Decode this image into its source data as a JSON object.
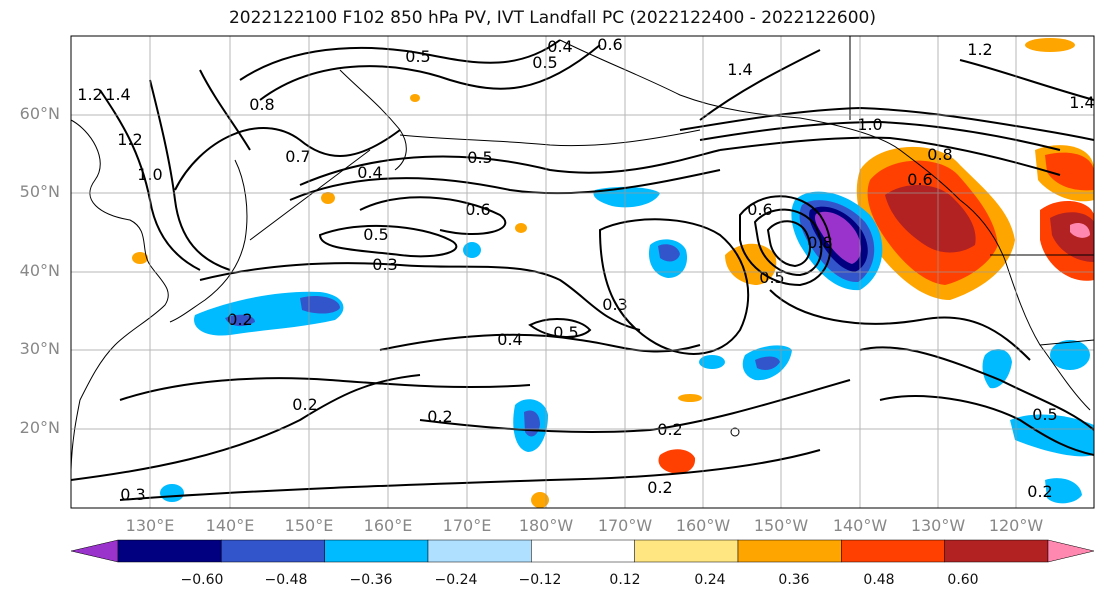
{
  "title": "2022122100 F102 850 hPa PV, IVT Landfall PC (2022122400 - 2022122600)",
  "lat_labels": [
    "60°N",
    "50°N",
    "40°N",
    "30°N",
    "20°N"
  ],
  "lon_labels": [
    "130°E",
    "140°E",
    "150°E",
    "160°E",
    "170°E",
    "180°W",
    "170°W",
    "160°W",
    "150°W",
    "140°W",
    "130°W",
    "120°W"
  ],
  "colorbar": {
    "tick_labels": [
      "−0.60",
      "−0.48",
      "−0.36",
      "−0.24",
      "−0.12",
      "0.12",
      "0.24",
      "0.36",
      "0.48",
      "0.60"
    ],
    "colors": [
      "#9933cc",
      "#000080",
      "#3355cc",
      "#00bbff",
      "#b0e0ff",
      "#ffffff",
      "#ffe680",
      "#ffa500",
      "#ff4000",
      "#b22222",
      "#ff88b0"
    ]
  },
  "contour_labels": [
    "0.5",
    "0.4",
    "0.5",
    "0.6",
    "1.4",
    "1.2",
    "1.4",
    "1.2",
    "1.0",
    "0.8",
    "0.7",
    "0.4",
    "0.5",
    "0.6",
    "0.5",
    "0.3",
    "0.2",
    "0.3",
    "0.4",
    "0.5",
    "0.2",
    "0.2",
    "0.2",
    "0.2",
    "0.3",
    "0.6",
    "0.5",
    "0.8",
    "1.0",
    "0.6",
    "0.8",
    "1.2",
    "1.4",
    "0.5",
    "0.2"
  ]
}
